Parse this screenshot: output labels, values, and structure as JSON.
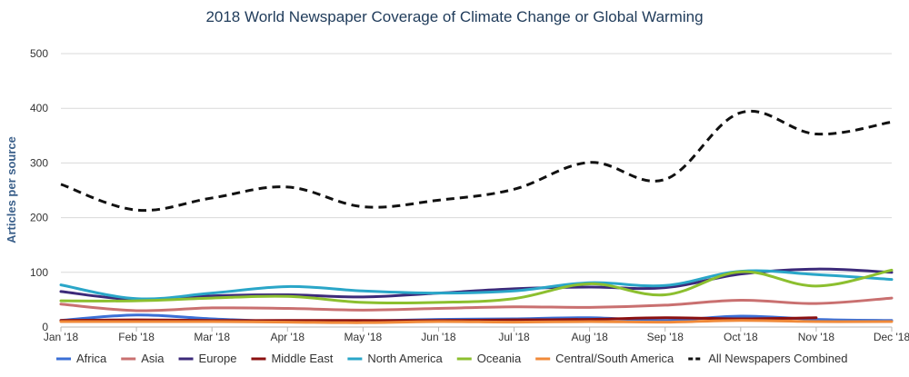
{
  "chart_data": {
    "type": "line",
    "title": "2018 World Newspaper Coverage of Climate Change or Global Warming",
    "ylabel": "Articles per source",
    "xlabel": "",
    "ylim": [
      0,
      500
    ],
    "yticks": [
      "0",
      "100",
      "200",
      "300",
      "400",
      "500"
    ],
    "categories": [
      "Jan '18",
      "Feb '18",
      "Mar '18",
      "Apr '18",
      "May '18",
      "Jun '18",
      "Jul '18",
      "Aug '18",
      "Sep '18",
      "Oct '18",
      "Nov '18",
      "Dec '18"
    ],
    "grid": true,
    "legend_position": "bottom",
    "series": [
      {
        "name": "Africa",
        "color": "#3b6fd6",
        "dashed": false,
        "values": [
          12,
          22,
          15,
          10,
          11,
          14,
          15,
          17,
          12,
          20,
          14,
          12
        ]
      },
      {
        "name": "Asia",
        "color": "#c97070",
        "dashed": false,
        "values": [
          42,
          30,
          35,
          34,
          31,
          34,
          37,
          36,
          40,
          49,
          43,
          53
        ]
      },
      {
        "name": "Europe",
        "color": "#3c2a7a",
        "dashed": false,
        "values": [
          65,
          50,
          57,
          59,
          55,
          62,
          70,
          73,
          72,
          97,
          106,
          100
        ]
      },
      {
        "name": "Middle East",
        "color": "#8b1010",
        "dashed": false,
        "values": [
          12,
          13,
          12,
          12,
          12,
          12,
          13,
          14,
          17,
          15,
          17,
          null
        ]
      },
      {
        "name": "North America",
        "color": "#2aa6c8",
        "dashed": false,
        "values": [
          77,
          52,
          62,
          74,
          66,
          62,
          66,
          81,
          76,
          102,
          96,
          87
        ]
      },
      {
        "name": "Oceania",
        "color": "#8cbf2f",
        "dashed": false,
        "values": [
          48,
          48,
          53,
          56,
          45,
          45,
          52,
          79,
          59,
          101,
          75,
          104
        ]
      },
      {
        "name": "Central/South America",
        "color": "#f08a3a",
        "dashed": false,
        "values": [
          10,
          10,
          10,
          9,
          8,
          10,
          9,
          10,
          9,
          12,
          10,
          10
        ]
      },
      {
        "name": "All Newspapers Combined",
        "color": "#111111",
        "dashed": true,
        "values": [
          261,
          214,
          236,
          256,
          220,
          232,
          252,
          301,
          270,
          392,
          353,
          375
        ]
      }
    ]
  }
}
